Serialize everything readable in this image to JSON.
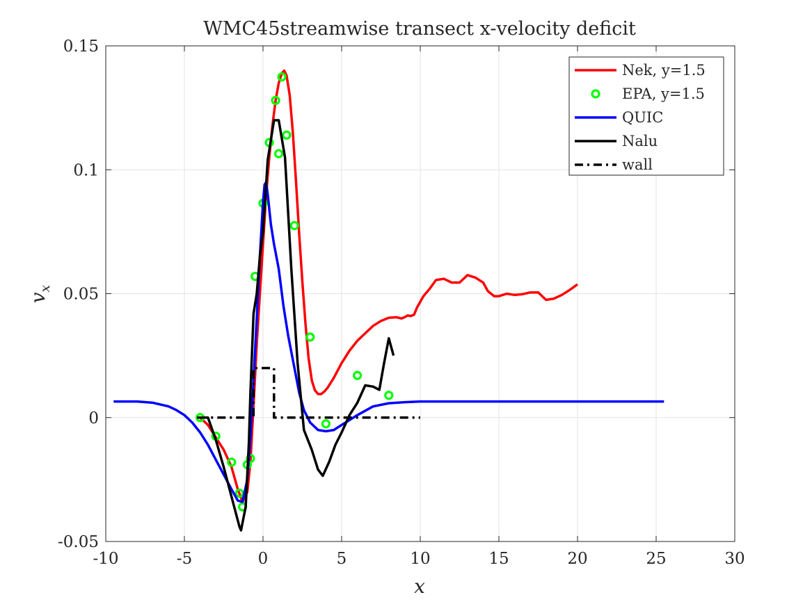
{
  "chart_data": {
    "type": "line",
    "title": "WMC45streamwise transect x-velocity deficit",
    "xlabel": "x",
    "ylabel_base": "v",
    "ylabel_sub": "x",
    "xlim": [
      -10,
      30
    ],
    "ylim": [
      -0.05,
      0.15
    ],
    "xticks": [
      -10,
      -5,
      0,
      5,
      10,
      15,
      20,
      25,
      30
    ],
    "xtick_labels": [
      "-10",
      "-5",
      "0",
      "5",
      "10",
      "15",
      "20",
      "25",
      "30"
    ],
    "yticks": [
      -0.05,
      0,
      0.05,
      0.1,
      0.15
    ],
    "ytick_labels": [
      "-0.05",
      "0",
      "0.05",
      "0.1",
      "0.15"
    ],
    "grid": true,
    "legend_position": "top-right",
    "series": [
      {
        "name": "Nek, y=1.5",
        "kind": "line",
        "color": "#ff0000",
        "dash": "solid",
        "x": [
          -4,
          -3.5,
          -3,
          -2.5,
          -2,
          -1.6,
          -1.3,
          -1,
          -0.8,
          -0.6,
          -0.4,
          -0.2,
          0,
          0.2,
          0.4,
          0.6,
          0.8,
          1.0,
          1.2,
          1.35,
          1.5,
          1.7,
          1.9,
          2.1,
          2.3,
          2.5,
          2.7,
          2.9,
          3.1,
          3.3,
          3.5,
          3.7,
          3.9,
          4.1,
          4.5,
          5,
          5.5,
          6,
          6.5,
          7,
          7.5,
          8,
          8.5,
          8.8,
          9.0,
          9.2,
          9.4,
          9.6,
          9.8,
          10.2,
          10.6,
          11,
          11.5,
          12,
          12.5,
          13,
          13.5,
          14,
          14.3,
          14.7,
          15,
          15.5,
          16,
          16.5,
          17,
          17.5,
          18,
          18.5,
          19,
          19.5,
          20
        ],
        "y": [
          0,
          -0.003,
          -0.008,
          -0.013,
          -0.02,
          -0.029,
          -0.034,
          -0.03,
          -0.018,
          0.005,
          0.03,
          0.05,
          0.07,
          0.09,
          0.105,
          0.118,
          0.128,
          0.135,
          0.139,
          0.14,
          0.138,
          0.13,
          0.115,
          0.095,
          0.074,
          0.055,
          0.038,
          0.024,
          0.015,
          0.011,
          0.0095,
          0.0095,
          0.0105,
          0.012,
          0.016,
          0.022,
          0.027,
          0.031,
          0.034,
          0.037,
          0.039,
          0.0403,
          0.0405,
          0.04,
          0.0405,
          0.0412,
          0.041,
          0.0415,
          0.0445,
          0.049,
          0.052,
          0.0555,
          0.056,
          0.0545,
          0.0545,
          0.0575,
          0.0565,
          0.0545,
          0.051,
          0.049,
          0.049,
          0.05,
          0.0495,
          0.0498,
          0.0505,
          0.0505,
          0.0475,
          0.048,
          0.0495,
          0.0515,
          0.0538
        ]
      },
      {
        "name": "EPA, y=1.5",
        "kind": "markers",
        "color": "#00ff00",
        "x": [
          -4,
          -3,
          -2,
          -1.5,
          -1.3,
          -1,
          -0.8,
          -0.5,
          0,
          0.4,
          0.8,
          1.0,
          1.2,
          1.5,
          2,
          3,
          4,
          6,
          8
        ],
        "y": [
          0,
          -0.0075,
          -0.018,
          -0.0305,
          -0.036,
          -0.019,
          -0.0165,
          0.057,
          0.0865,
          0.111,
          0.128,
          0.1065,
          0.1375,
          0.114,
          0.0775,
          0.0325,
          -0.0025,
          0.017,
          0.009
        ]
      },
      {
        "name": "QUIC",
        "kind": "line",
        "color": "#0000ff",
        "dash": "solid",
        "x": [
          -9.5,
          -8,
          -7,
          -6,
          -5.5,
          -5,
          -4.5,
          -4,
          -3.5,
          -3,
          -2.5,
          -2,
          -1.6,
          -1.3,
          -1,
          -0.8,
          -0.6,
          -0.4,
          -0.2,
          0,
          0.1,
          0.2,
          0.3,
          0.5,
          0.7,
          1.0,
          1.3,
          1.6,
          2.0,
          2.3,
          2.6,
          3,
          3.5,
          4,
          4.5,
          5,
          5.5,
          6,
          7,
          8,
          9,
          10,
          12,
          15,
          20,
          25.5
        ],
        "y": [
          0.0065,
          0.0065,
          0.006,
          0.0045,
          0.003,
          0.001,
          -0.002,
          -0.006,
          -0.011,
          -0.017,
          -0.023,
          -0.029,
          -0.0335,
          -0.034,
          -0.025,
          -0.008,
          0.015,
          0.04,
          0.065,
          0.087,
          0.094,
          0.095,
          0.09,
          0.078,
          0.07,
          0.06,
          0.045,
          0.033,
          0.02,
          0.01,
          0.003,
          -0.002,
          -0.005,
          -0.0055,
          -0.005,
          -0.003,
          -0.001,
          0.001,
          0.0045,
          0.0058,
          0.0062,
          0.0065,
          0.0065,
          0.0065,
          0.0065,
          0.0065
        ]
      },
      {
        "name": "Nalu",
        "kind": "line",
        "color": "#000000",
        "dash": "solid",
        "x": [
          -4.2,
          -3.5,
          -3,
          -2.5,
          -2,
          -1.5,
          -1.4,
          -1.1,
          -0.9,
          -0.8,
          -0.6,
          -0.4,
          -0.2,
          0,
          0.3,
          0.7,
          1.0,
          1.4,
          1.8,
          2.2,
          2.6,
          3.1,
          3.5,
          3.8,
          4.2,
          4.6,
          5.0,
          5.5,
          6.0,
          6.5,
          7.0,
          7.4,
          7.7,
          8.0,
          8.3
        ],
        "y": [
          0,
          0,
          -0.009,
          -0.02,
          -0.032,
          -0.044,
          -0.0455,
          -0.036,
          -0.01,
          0.01,
          0.042,
          0.05,
          0.065,
          0.075,
          0.104,
          0.12,
          0.12,
          0.105,
          0.06,
          0.022,
          -0.005,
          -0.013,
          -0.021,
          -0.0235,
          -0.018,
          -0.011,
          -0.006,
          0.001,
          0.006,
          0.013,
          0.0125,
          0.0112,
          0.022,
          0.032,
          0.025
        ]
      },
      {
        "name": "wall",
        "kind": "line",
        "color": "#000000",
        "dash": "dashdot",
        "x": [
          -4.1,
          -0.6,
          -0.6,
          0.7,
          0.7,
          10
        ],
        "y": [
          0,
          0,
          0.02,
          0.02,
          0,
          0
        ]
      }
    ]
  }
}
